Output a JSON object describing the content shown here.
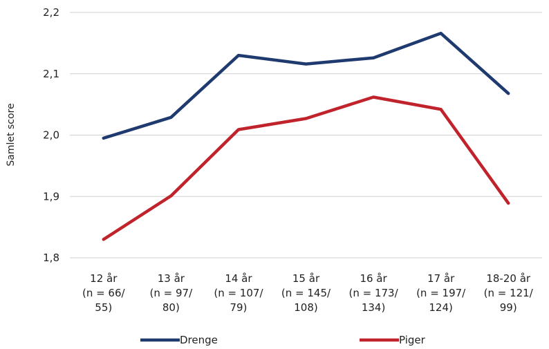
{
  "chart_data": {
    "type": "line",
    "title": "",
    "xlabel": "",
    "ylabel": "Samlet score",
    "ylim": [
      1.8,
      2.2
    ],
    "y_ticks": [
      "1,8",
      "1,9",
      "2,0",
      "2,1",
      "2,2"
    ],
    "grid": true,
    "legend_position": "bottom",
    "categories": [
      [
        "12 år",
        "(n = 66/",
        "55)"
      ],
      [
        "13 år",
        "(n = 97/",
        "80)"
      ],
      [
        "14 år",
        "(n = 107/",
        "79)"
      ],
      [
        "15 år",
        "(n = 145/",
        "108)"
      ],
      [
        "16 år",
        "(n = 173/",
        "134)"
      ],
      [
        "17 år",
        "(n = 197/",
        "124)"
      ],
      [
        "18-20 år",
        "(n = 121/",
        "99)"
      ]
    ],
    "series": [
      {
        "name": "Drenge",
        "color": "#1f3a6e",
        "values": [
          1.995,
          2.029,
          2.13,
          2.116,
          2.126,
          2.166,
          2.068
        ]
      },
      {
        "name": "Piger",
        "color": "#c0232b",
        "values": [
          1.83,
          1.901,
          2.009,
          2.027,
          2.062,
          2.042,
          1.889
        ]
      }
    ]
  }
}
